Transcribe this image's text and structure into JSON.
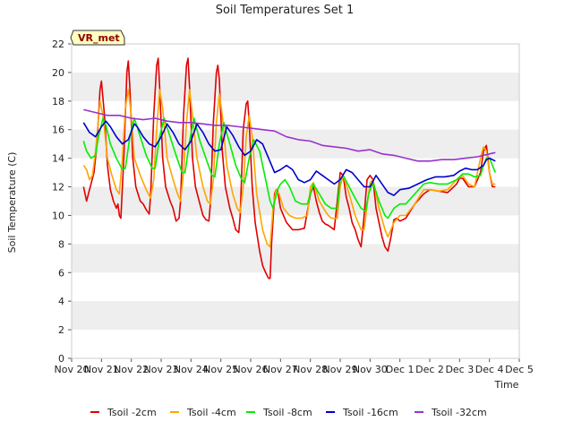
{
  "chart_data": {
    "type": "line",
    "title": "Soil Temperatures Set 1",
    "xlabel": "Time",
    "ylabel": "Soil Temperature (C)",
    "ylim": [
      0,
      22
    ],
    "yticks": [
      0,
      2,
      4,
      6,
      8,
      10,
      12,
      14,
      16,
      18,
      20,
      22
    ],
    "xlim": [
      0,
      15
    ],
    "xtick_labels": [
      "Nov 20",
      "Nov 21",
      "Nov 22",
      "Nov 23",
      "Nov 24",
      "Nov 25",
      "Nov 26",
      "Nov 27",
      "Nov 28",
      "Nov 29",
      "Nov 30",
      "Dec 1",
      "Dec 2",
      "Dec 3",
      "Dec 4",
      "Dec 5"
    ],
    "grid": "horizontal bands",
    "legend_position": "bottom",
    "badge": "VR_met",
    "colors": {
      "band": "#eeeeee",
      "badge_bg": "#ffffc0",
      "badge_text": "#8b0000"
    },
    "series": [
      {
        "name": "Tsoil -2cm",
        "color": "#e00000",
        "x": [
          0.4,
          0.5,
          0.6,
          0.75,
          0.85,
          0.95,
          1.0,
          1.1,
          1.2,
          1.3,
          1.4,
          1.5,
          1.55,
          1.6,
          1.65,
          1.75,
          1.85,
          1.9,
          1.95,
          2.05,
          2.15,
          2.3,
          2.4,
          2.5,
          2.6,
          2.65,
          2.75,
          2.85,
          2.9,
          2.95,
          3.05,
          3.15,
          3.3,
          3.4,
          3.5,
          3.6,
          3.65,
          3.75,
          3.85,
          3.9,
          3.95,
          4.05,
          4.15,
          4.3,
          4.4,
          4.5,
          4.6,
          4.65,
          4.75,
          4.85,
          4.9,
          4.95,
          5.05,
          5.15,
          5.3,
          5.4,
          5.5,
          5.6,
          5.65,
          5.75,
          5.85,
          5.9,
          5.95,
          6.05,
          6.15,
          6.3,
          6.4,
          6.5,
          6.6,
          6.65,
          6.7,
          6.8,
          6.85,
          6.9,
          7.0,
          7.2,
          7.4,
          7.6,
          7.8,
          8.0,
          8.1,
          8.2,
          8.3,
          8.4,
          8.5,
          8.6,
          8.8,
          8.9,
          9.0,
          9.1,
          9.2,
          9.3,
          9.4,
          9.5,
          9.6,
          9.7,
          9.8,
          9.9,
          10.0,
          10.1,
          10.2,
          10.3,
          10.4,
          10.5,
          10.6,
          10.7,
          10.8,
          10.9,
          11.0,
          11.2,
          11.5,
          11.8,
          12.0,
          12.3,
          12.6,
          12.9,
          13.0,
          13.1,
          13.3,
          13.5,
          13.7,
          13.8,
          13.9,
          14.0,
          14.1,
          14.2
        ],
        "values": [
          12.0,
          11.0,
          11.8,
          13.0,
          15.0,
          18.8,
          19.4,
          17.0,
          13.5,
          11.8,
          11.0,
          10.5,
          10.8,
          10.0,
          9.8,
          14.0,
          20.0,
          20.8,
          19.0,
          14.0,
          12.0,
          11.0,
          10.8,
          10.4,
          10.1,
          11.5,
          17.0,
          20.5,
          21.0,
          19.0,
          14.0,
          12.0,
          11.0,
          10.5,
          9.6,
          9.8,
          11.0,
          17.0,
          20.5,
          21.0,
          19.0,
          14.0,
          12.0,
          10.8,
          10.0,
          9.7,
          9.6,
          10.8,
          16.5,
          20.0,
          20.5,
          19.5,
          14.5,
          12.0,
          10.5,
          9.8,
          9.0,
          8.8,
          10.0,
          16.0,
          17.8,
          18.0,
          16.5,
          12.0,
          9.5,
          7.5,
          6.5,
          6.0,
          5.6,
          5.6,
          8.0,
          11.5,
          11.8,
          11.8,
          10.5,
          9.5,
          9.0,
          9.0,
          9.1,
          11.5,
          12.0,
          11.0,
          10.2,
          9.6,
          9.4,
          9.3,
          9.0,
          11.0,
          13.0,
          12.8,
          11.3,
          10.5,
          9.5,
          9.0,
          8.3,
          7.8,
          10.0,
          12.5,
          12.8,
          12.5,
          10.5,
          9.5,
          8.5,
          7.8,
          7.5,
          8.5,
          9.7,
          9.8,
          9.6,
          9.8,
          10.8,
          11.5,
          11.8,
          11.7,
          11.6,
          12.2,
          12.6,
          12.6,
          12.0,
          12.0,
          13.0,
          14.5,
          14.9,
          13.0,
          12.0,
          12.0
        ]
      },
      {
        "name": "Tsoil -4cm",
        "color": "#ffa500",
        "x": [
          0.4,
          0.5,
          0.6,
          0.7,
          0.8,
          0.95,
          1.05,
          1.2,
          1.35,
          1.5,
          1.6,
          1.7,
          1.8,
          1.9,
          2.0,
          2.1,
          2.3,
          2.5,
          2.65,
          2.75,
          2.85,
          2.95,
          3.05,
          3.2,
          3.4,
          3.55,
          3.65,
          3.75,
          3.85,
          3.95,
          4.05,
          4.2,
          4.4,
          4.55,
          4.65,
          4.75,
          4.85,
          4.95,
          5.05,
          5.2,
          5.4,
          5.55,
          5.65,
          5.75,
          5.85,
          5.95,
          6.05,
          6.2,
          6.4,
          6.55,
          6.65,
          6.75,
          6.85,
          6.95,
          7.1,
          7.3,
          7.5,
          7.7,
          7.9,
          8.0,
          8.1,
          8.3,
          8.5,
          8.6,
          8.7,
          8.9,
          9.0,
          9.1,
          9.3,
          9.5,
          9.6,
          9.7,
          9.8,
          10.0,
          10.1,
          10.3,
          10.5,
          10.6,
          10.8,
          11.0,
          11.2,
          11.5,
          11.8,
          12.0,
          12.3,
          12.6,
          12.9,
          13.1,
          13.3,
          13.5,
          13.7,
          13.8,
          13.9,
          14.0,
          14.1,
          14.2
        ],
        "values": [
          13.5,
          13.2,
          12.5,
          12.8,
          14.5,
          18.0,
          17.0,
          14.0,
          12.8,
          11.8,
          11.5,
          14.0,
          17.5,
          18.8,
          17.0,
          14.0,
          12.8,
          11.8,
          11.2,
          12.5,
          16.0,
          18.8,
          17.5,
          14.0,
          12.5,
          11.5,
          11.0,
          13.0,
          16.5,
          18.8,
          17.0,
          14.0,
          12.0,
          11.0,
          10.8,
          12.5,
          16.5,
          18.5,
          17.0,
          13.5,
          11.5,
          10.5,
          10.2,
          12.0,
          15.5,
          17.0,
          15.5,
          11.5,
          9.0,
          8.0,
          7.8,
          10.5,
          11.8,
          11.5,
          10.5,
          10.0,
          9.8,
          9.8,
          10.0,
          12.0,
          12.3,
          11.0,
          10.3,
          10.0,
          9.8,
          9.8,
          12.0,
          12.8,
          11.5,
          10.0,
          9.5,
          9.0,
          9.0,
          12.3,
          12.5,
          10.5,
          9.0,
          8.5,
          9.5,
          10.0,
          10.0,
          10.8,
          11.8,
          11.8,
          11.7,
          11.8,
          12.5,
          12.8,
          12.2,
          12.0,
          14.0,
          14.8,
          14.5,
          13.0,
          12.2,
          12.2
        ]
      },
      {
        "name": "Tsoil -8cm",
        "color": "#00ee00",
        "x": [
          0.4,
          0.5,
          0.65,
          0.8,
          0.9,
          1.05,
          1.15,
          1.3,
          1.5,
          1.7,
          1.8,
          1.95,
          2.1,
          2.3,
          2.5,
          2.7,
          2.8,
          2.95,
          3.1,
          3.3,
          3.5,
          3.7,
          3.8,
          3.95,
          4.1,
          4.3,
          4.5,
          4.7,
          4.8,
          4.95,
          5.1,
          5.3,
          5.5,
          5.7,
          5.8,
          5.95,
          6.1,
          6.3,
          6.5,
          6.65,
          6.75,
          6.9,
          7.0,
          7.15,
          7.3,
          7.5,
          7.7,
          7.9,
          8.0,
          8.1,
          8.3,
          8.5,
          8.7,
          8.9,
          9.0,
          9.1,
          9.3,
          9.5,
          9.7,
          9.85,
          9.95,
          10.1,
          10.3,
          10.5,
          10.6,
          10.8,
          11.0,
          11.2,
          11.5,
          11.8,
          12.0,
          12.3,
          12.6,
          12.9,
          13.1,
          13.3,
          13.5,
          13.7,
          13.8,
          13.9,
          14.0,
          14.1,
          14.2
        ],
        "values": [
          15.2,
          14.5,
          14.0,
          14.2,
          15.5,
          16.8,
          16.3,
          15.0,
          14.0,
          13.2,
          13.3,
          15.5,
          16.8,
          15.5,
          14.2,
          13.3,
          13.3,
          15.5,
          16.8,
          15.5,
          14.2,
          13.0,
          13.0,
          15.2,
          16.8,
          15.2,
          14.0,
          12.8,
          12.7,
          15.0,
          16.5,
          15.0,
          13.5,
          12.5,
          12.3,
          14.0,
          15.3,
          14.5,
          12.5,
          11.0,
          10.5,
          11.8,
          12.2,
          12.5,
          12.0,
          11.0,
          10.8,
          10.8,
          11.5,
          12.2,
          11.5,
          10.8,
          10.5,
          10.5,
          12.5,
          12.8,
          12.0,
          11.2,
          10.5,
          10.3,
          11.5,
          12.3,
          11.0,
          10.0,
          9.8,
          10.5,
          10.8,
          10.8,
          11.5,
          12.2,
          12.3,
          12.2,
          12.2,
          12.5,
          12.9,
          12.9,
          12.7,
          12.8,
          13.5,
          14.0,
          14.0,
          13.5,
          13.0
        ]
      },
      {
        "name": "Tsoil -16cm",
        "color": "#0000cc",
        "x": [
          0.4,
          0.6,
          0.8,
          1.0,
          1.15,
          1.3,
          1.5,
          1.7,
          1.9,
          2.1,
          2.2,
          2.4,
          2.6,
          2.8,
          3.0,
          3.2,
          3.4,
          3.6,
          3.8,
          4.0,
          4.2,
          4.4,
          4.6,
          4.8,
          5.0,
          5.2,
          5.4,
          5.6,
          5.8,
          6.0,
          6.2,
          6.4,
          6.6,
          6.8,
          7.0,
          7.2,
          7.4,
          7.6,
          7.8,
          8.0,
          8.2,
          8.4,
          8.6,
          8.8,
          9.0,
          9.2,
          9.4,
          9.6,
          9.8,
          10.0,
          10.2,
          10.4,
          10.6,
          10.8,
          11.0,
          11.3,
          11.6,
          11.9,
          12.2,
          12.5,
          12.8,
          13.0,
          13.2,
          13.4,
          13.6,
          13.8,
          13.9,
          14.0,
          14.2
        ],
        "values": [
          16.5,
          15.8,
          15.5,
          16.2,
          16.6,
          16.2,
          15.5,
          15.0,
          15.3,
          16.4,
          16.2,
          15.5,
          15.0,
          14.8,
          15.5,
          16.4,
          15.8,
          15.0,
          14.6,
          15.2,
          16.4,
          15.8,
          15.0,
          14.5,
          14.6,
          16.2,
          15.6,
          14.8,
          14.2,
          14.5,
          15.3,
          15.0,
          14.0,
          13.0,
          13.2,
          13.5,
          13.2,
          12.5,
          12.3,
          12.5,
          13.1,
          12.8,
          12.5,
          12.2,
          12.5,
          13.2,
          13.0,
          12.5,
          12.0,
          12.0,
          12.8,
          12.2,
          11.6,
          11.4,
          11.8,
          11.9,
          12.2,
          12.5,
          12.7,
          12.7,
          12.8,
          13.1,
          13.3,
          13.2,
          13.2,
          13.5,
          13.9,
          14.0,
          13.8
        ]
      },
      {
        "name": "Tsoil -32cm",
        "color": "#9932cc",
        "x": [
          0.4,
          0.8,
          1.2,
          1.6,
          2.0,
          2.4,
          2.8,
          3.2,
          3.6,
          4.0,
          4.4,
          4.8,
          5.2,
          5.6,
          6.0,
          6.4,
          6.8,
          7.2,
          7.6,
          8.0,
          8.4,
          8.8,
          9.2,
          9.6,
          10.0,
          10.4,
          10.8,
          11.2,
          11.6,
          12.0,
          12.4,
          12.8,
          13.2,
          13.6,
          14.0,
          14.2
        ],
        "values": [
          17.4,
          17.2,
          17.0,
          17.0,
          16.8,
          16.7,
          16.8,
          16.6,
          16.5,
          16.5,
          16.4,
          16.3,
          16.3,
          16.2,
          16.1,
          16.0,
          15.9,
          15.5,
          15.3,
          15.2,
          14.9,
          14.8,
          14.7,
          14.5,
          14.6,
          14.3,
          14.2,
          14.0,
          13.8,
          13.8,
          13.9,
          13.9,
          14.0,
          14.1,
          14.3,
          14.4
        ]
      }
    ]
  }
}
